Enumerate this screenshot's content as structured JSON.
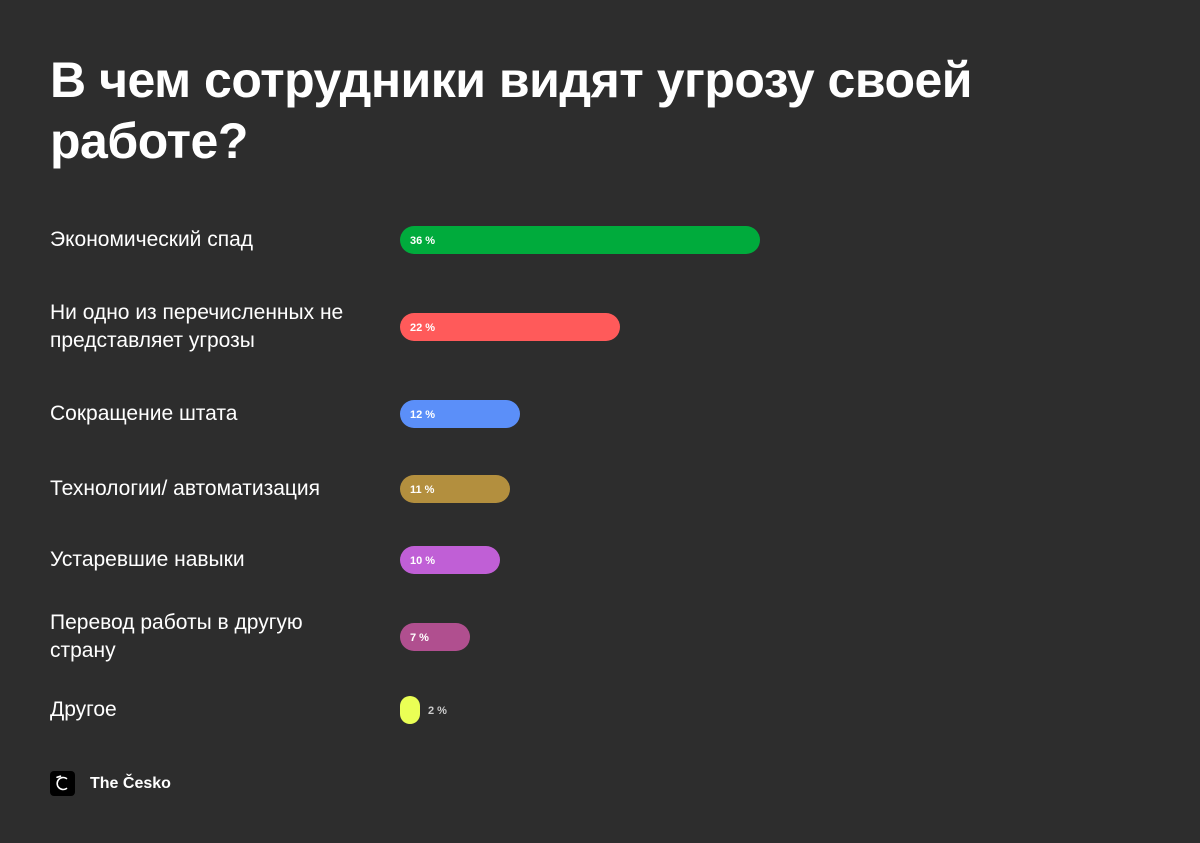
{
  "chart_data": {
    "type": "bar",
    "orientation": "horizontal",
    "title": "В чем сотрудники видят угрозу своей работе?",
    "unit": "%",
    "categories": [
      "Экономический спад",
      "Ни одно из перечисленных не представляет угрозы",
      "Сокращение штата",
      "Технологии/ автоматизация",
      "Устаревшие навыки",
      "Перевод работы в другую страну",
      "Другое"
    ],
    "values": [
      36,
      22,
      12,
      11,
      10,
      7,
      2
    ],
    "value_labels": [
      "36 %",
      "22 %",
      "12 %",
      "11 %",
      "10 %",
      "7 %",
      "2 %"
    ],
    "colors": [
      "#00ab3c",
      "#ff5a5a",
      "#5b8ff9",
      "#b38f3e",
      "#c05fd6",
      "#b04f8f",
      "#eaff55"
    ],
    "grid": false,
    "legend": "none"
  },
  "brand": {
    "name": "The Česko",
    "icon": "the-cesko-logo-icon"
  }
}
